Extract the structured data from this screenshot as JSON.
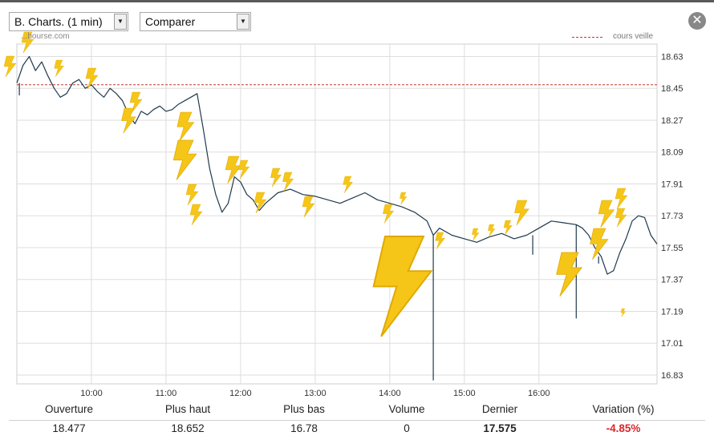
{
  "controls": {
    "chart_select": "B. Charts. (1 min)",
    "compare_select": "Comparer",
    "close_glyph": "✕",
    "dropdown_glyph": "▼"
  },
  "watermark": "...bourse.com",
  "colors": {
    "price_line": "#1f3a4d",
    "reference_line": "#c0392b",
    "grid": "#dddddd",
    "lightning": "#f5c518",
    "negative": "#d9262b"
  },
  "chart_data": {
    "type": "line",
    "title": "",
    "xlabel": "",
    "ylabel": "",
    "legend": [
      {
        "name": "cours veille",
        "style": "dashed",
        "placement": "top-right"
      }
    ],
    "reference_line": {
      "name": "cours veille",
      "value": 18.47
    },
    "ylim": [
      16.78,
      18.7
    ],
    "y_ticks": [
      18.63,
      18.45,
      18.27,
      18.09,
      17.91,
      17.73,
      17.55,
      17.37,
      17.19,
      17.01,
      16.83
    ],
    "y_tick_labels": [
      "18.63",
      "18.45",
      "18.27",
      "18.09",
      "17.91",
      "17.73",
      "17.55",
      "17.37",
      "17.19",
      "17.01",
      "16.83"
    ],
    "xlim": [
      "09:00",
      "17:35"
    ],
    "x_ticks": [
      "10:00",
      "11:00",
      "12:00",
      "13:00",
      "14:00",
      "15:00",
      "16:00"
    ],
    "grid": true,
    "y_axis_position": "right",
    "series": [
      {
        "x": [
          "09:00",
          "09:05",
          "09:10",
          "09:15",
          "09:20",
          "09:25",
          "09:30",
          "09:35",
          "09:40",
          "09:45",
          "09:50",
          "09:55",
          "10:00",
          "10:05",
          "10:10",
          "10:15",
          "10:20",
          "10:25",
          "10:30",
          "10:35",
          "10:40",
          "10:45",
          "10:50",
          "10:55",
          "11:00",
          "11:05",
          "11:10",
          "11:15",
          "11:20",
          "11:25",
          "11:30",
          "11:35",
          "11:40",
          "11:45",
          "11:50",
          "11:55",
          "12:00",
          "12:05",
          "12:10",
          "12:15",
          "12:20",
          "12:30",
          "12:40",
          "12:50",
          "13:00",
          "13:10",
          "13:20",
          "13:30",
          "13:40",
          "13:50",
          "14:00",
          "14:10",
          "14:20",
          "14:30",
          "14:35",
          "14:40",
          "14:50",
          "15:00",
          "15:10",
          "15:20",
          "15:30",
          "15:40",
          "15:50",
          "16:00",
          "16:10",
          "16:20",
          "16:30",
          "16:35",
          "16:40",
          "16:45",
          "16:50",
          "16:55",
          "17:00",
          "17:05",
          "17:10",
          "17:15",
          "17:20",
          "17:25",
          "17:30",
          "17:35"
        ],
        "values": [
          18.48,
          18.58,
          18.63,
          18.55,
          18.6,
          18.52,
          18.45,
          18.4,
          18.42,
          18.48,
          18.5,
          18.45,
          18.47,
          18.43,
          18.4,
          18.45,
          18.42,
          18.38,
          18.3,
          18.25,
          18.32,
          18.3,
          18.33,
          18.35,
          18.32,
          18.33,
          18.36,
          18.38,
          18.4,
          18.42,
          18.22,
          18.0,
          17.85,
          17.75,
          17.8,
          17.95,
          17.92,
          17.85,
          17.82,
          17.76,
          17.8,
          17.86,
          17.88,
          17.85,
          17.84,
          17.82,
          17.8,
          17.83,
          17.86,
          17.82,
          17.8,
          17.78,
          17.75,
          17.7,
          17.62,
          17.66,
          17.62,
          17.6,
          17.58,
          17.61,
          17.63,
          17.6,
          17.62,
          17.66,
          17.7,
          17.69,
          17.68,
          17.66,
          17.62,
          17.55,
          17.5,
          17.4,
          17.42,
          17.52,
          17.6,
          17.7,
          17.73,
          17.72,
          17.62,
          17.57
        ]
      }
    ],
    "spikes": [
      {
        "x": "09:02",
        "low": 18.41
      },
      {
        "x": "14:35",
        "low": 16.8
      },
      {
        "x": "15:55",
        "low": 17.51
      },
      {
        "x": "16:30",
        "low": 17.15
      },
      {
        "x": "16:48",
        "low": 17.46
      }
    ]
  },
  "stats": {
    "headers": [
      "Ouverture",
      "Plus haut",
      "Plus bas",
      "Volume",
      "Dernier",
      "Variation (%)"
    ],
    "values": [
      "18.477",
      "18.652",
      "16.78",
      "0",
      "17.575",
      "-4.85%"
    ]
  }
}
